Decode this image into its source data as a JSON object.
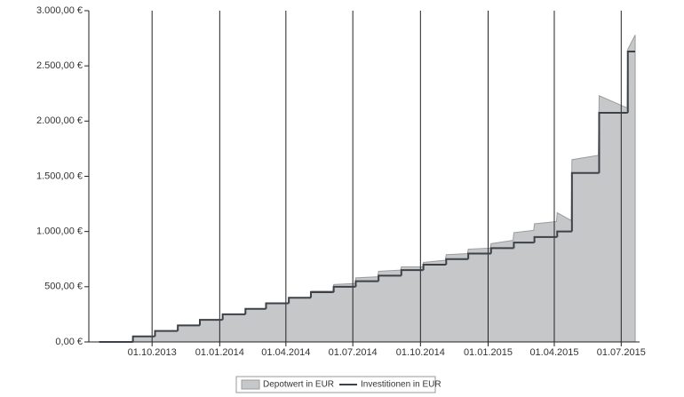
{
  "chart_data": {
    "type": "area-step",
    "x": [
      "21.07.2013",
      "04.09.2013",
      "05.09.2013",
      "04.10.2013",
      "05.10.2013",
      "04.11.2013",
      "05.11.2013",
      "04.12.2013",
      "05.12.2013",
      "04.01.2014",
      "05.01.2014",
      "04.02.2014",
      "05.02.2014",
      "04.03.2014",
      "05.03.2014",
      "04.04.2014",
      "05.04.2014",
      "04.05.2014",
      "05.05.2014",
      "04.06.2014",
      "05.06.2014",
      "04.07.2014",
      "05.07.2014",
      "04.08.2014",
      "05.08.2014",
      "04.09.2014",
      "05.09.2014",
      "04.10.2014",
      "05.10.2014",
      "04.11.2014",
      "05.11.2014",
      "04.12.2014",
      "05.12.2014",
      "04.01.2015",
      "05.01.2015",
      "04.02.2015",
      "05.02.2015",
      "04.03.2015",
      "05.03.2015",
      "04.04.2015",
      "05.04.2015",
      "24.04.2015",
      "25.04.2015",
      "31.05.2015",
      "01.06.2015",
      "09.07.2015",
      "10.07.2015",
      "20.07.2015"
    ],
    "series": [
      {
        "name": "Depotwert in EUR",
        "color": "#c5c7c9",
        "style": "area",
        "values": [
          0,
          0,
          50,
          50,
          100,
          100,
          150,
          150,
          200,
          200,
          250,
          250,
          300,
          300,
          350,
          350,
          400,
          400,
          460,
          460,
          520,
          530,
          580,
          590,
          640,
          650,
          680,
          680,
          720,
          740,
          790,
          800,
          840,
          850,
          890,
          920,
          990,
          1010,
          1070,
          1090,
          1170,
          1100,
          1650,
          1690,
          2230,
          2120,
          2650,
          2780
        ]
      },
      {
        "name": "Investitionen in EUR",
        "color": "#3c4248",
        "style": "step",
        "values": [
          0,
          0,
          50,
          50,
          100,
          100,
          150,
          150,
          200,
          200,
          250,
          250,
          300,
          300,
          350,
          350,
          400,
          400,
          450,
          450,
          500,
          500,
          550,
          550,
          600,
          600,
          650,
          650,
          700,
          700,
          750,
          750,
          800,
          800,
          850,
          850,
          900,
          900,
          950,
          950,
          1000,
          1000,
          1530,
          1530,
          2075,
          2075,
          2630,
          2630
        ]
      }
    ],
    "xlim": [
      "07.07.2013",
      "26.07.2015"
    ],
    "xticks": [
      "01.10.2013",
      "01.01.2014",
      "01.04.2014",
      "01.07.2014",
      "01.10.2014",
      "01.01.2015",
      "01.04.2015",
      "01.07.2015"
    ],
    "ylim": [
      0,
      3000
    ],
    "yticks": [
      {
        "value": 0,
        "label": "0,00 €"
      },
      {
        "value": 500,
        "label": "500,00 €"
      },
      {
        "value": 1000,
        "label": "1.000,00 €"
      },
      {
        "value": 1500,
        "label": "1.500,00 €"
      },
      {
        "value": 2000,
        "label": "2.000,00 €"
      },
      {
        "value": 2500,
        "label": "2.500,00 €"
      },
      {
        "value": 3000,
        "label": "3.000,00 €"
      }
    ],
    "grid": true
  }
}
